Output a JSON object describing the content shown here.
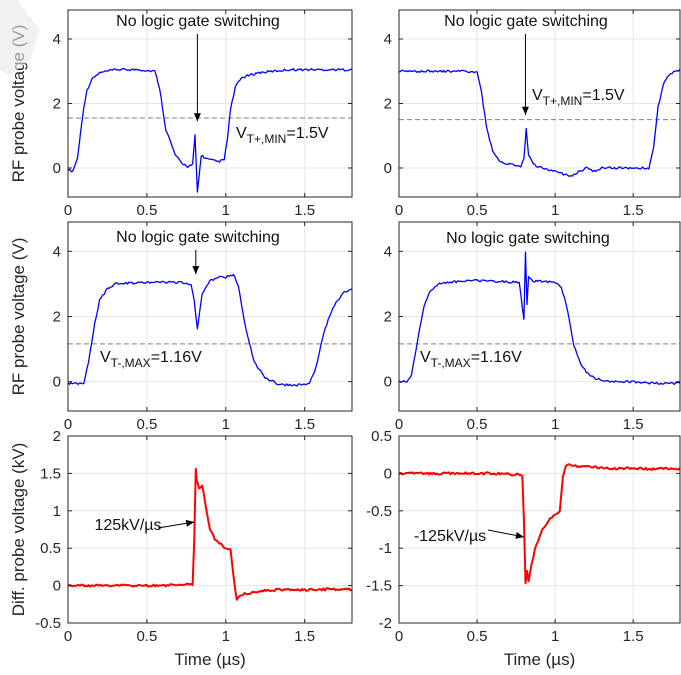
{
  "chart_data": [
    {
      "type": "line",
      "xlim": [
        0,
        1.8
      ],
      "ylim": [
        -0.9,
        4.9
      ],
      "xticks": [
        0,
        0.5,
        1,
        1.5
      ],
      "yticks": [
        0,
        2,
        4
      ],
      "xtick_labels": [
        "0",
        "0.5",
        "1",
        "1.5"
      ],
      "ytick_labels": [
        "0",
        "2",
        "4"
      ],
      "xlabel": "",
      "ylabel": "RF probe voltage (V)",
      "grid": true,
      "series": [
        {
          "color": "#0000ff",
          "x": [
            0,
            0.03,
            0.06,
            0.08,
            0.1,
            0.12,
            0.15,
            0.2,
            0.3,
            0.45,
            0.55,
            0.58,
            0.62,
            0.68,
            0.72,
            0.76,
            0.79,
            0.805,
            0.82,
            0.83,
            0.845,
            0.87,
            0.9,
            0.95,
            0.99,
            1.01,
            1.03,
            1.06,
            1.1,
            1.2,
            1.4,
            1.6,
            1.8
          ],
          "y": [
            -0.05,
            -0.1,
            0.3,
            1.1,
            1.9,
            2.4,
            2.75,
            2.95,
            3.05,
            3.05,
            3.0,
            2.5,
            1.2,
            0.4,
            0.15,
            0.05,
            0.1,
            1.0,
            -0.75,
            -0.3,
            0.4,
            0.3,
            0.25,
            0.2,
            0.25,
            0.9,
            1.8,
            2.5,
            2.8,
            2.95,
            3.05,
            3.05,
            3.05
          ]
        }
      ],
      "reference_line": {
        "y": 1.55,
        "style": "dashed"
      },
      "annotations": [
        {
          "text": "No logic gate switching",
          "arrow_to": [
            0.82,
            1.45
          ]
        },
        {
          "main": "V",
          "sub": "T+,MIN",
          "after": "=1.5V"
        }
      ]
    },
    {
      "type": "line",
      "xlim": [
        0,
        1.8
      ],
      "ylim": [
        -0.9,
        4.9
      ],
      "xticks": [
        0,
        0.5,
        1,
        1.5
      ],
      "yticks": [
        0,
        2,
        4
      ],
      "xtick_labels": [
        "0",
        "0.5",
        "1",
        "1.5"
      ],
      "ytick_labels": [
        "0",
        "2",
        "4"
      ],
      "xlabel": "",
      "ylabel": "",
      "grid": true,
      "series": [
        {
          "color": "#0000ff",
          "x": [
            0,
            0.2,
            0.4,
            0.5,
            0.53,
            0.56,
            0.6,
            0.65,
            0.72,
            0.78,
            0.8,
            0.815,
            0.83,
            0.86,
            0.95,
            1.1,
            1.2,
            1.25,
            1.3,
            1.4,
            1.5,
            1.55,
            1.6,
            1.63,
            1.66,
            1.7,
            1.75,
            1.8
          ],
          "y": [
            3.0,
            3.0,
            3.0,
            2.95,
            2.3,
            1.3,
            0.5,
            0.2,
            0.1,
            0.05,
            0.3,
            1.2,
            0.4,
            0.1,
            -0.05,
            -0.25,
            0.0,
            -0.1,
            0.0,
            0.0,
            0.0,
            0.0,
            0.0,
            0.6,
            1.9,
            2.7,
            2.95,
            3.05
          ]
        }
      ],
      "reference_line": {
        "y": 1.5,
        "style": "dashed"
      },
      "annotations": [
        {
          "text": "No logic gate switching",
          "arrow_to": [
            0.81,
            1.65
          ]
        },
        {
          "main": "V",
          "sub": "T+,MIN",
          "after": "=1.5V"
        }
      ]
    },
    {
      "type": "line",
      "xlim": [
        0,
        1.8
      ],
      "ylim": [
        -0.9,
        4.9
      ],
      "xticks": [
        0,
        0.5,
        1,
        1.5
      ],
      "yticks": [
        0,
        2,
        4
      ],
      "xtick_labels": [
        "0",
        "0.5",
        "1",
        "1.5"
      ],
      "ytick_labels": [
        "0",
        "2",
        "4"
      ],
      "xlabel": "",
      "ylabel": "RF probe voltage (V)",
      "grid": true,
      "series": [
        {
          "color": "#0000ff",
          "x": [
            0,
            0.1,
            0.13,
            0.17,
            0.2,
            0.25,
            0.3,
            0.5,
            0.7,
            0.78,
            0.8,
            0.82,
            0.85,
            0.9,
            0.95,
            1.0,
            1.05,
            1.08,
            1.12,
            1.18,
            1.25,
            1.35,
            1.45,
            1.5,
            1.53,
            1.57,
            1.62,
            1.68,
            1.75,
            1.8
          ],
          "y": [
            -0.05,
            -0.05,
            0.6,
            1.8,
            2.5,
            2.85,
            3.0,
            3.05,
            3.05,
            3.0,
            2.5,
            1.6,
            2.7,
            3.1,
            3.2,
            3.2,
            3.3,
            2.9,
            1.8,
            0.6,
            0.1,
            -0.1,
            -0.1,
            -0.1,
            -0.05,
            0.4,
            1.5,
            2.3,
            2.75,
            2.85
          ]
        }
      ],
      "reference_line": {
        "y": 1.16,
        "style": "dashed"
      },
      "annotations": [
        {
          "text": "No logic gate switching",
          "arrow_to": [
            0.81,
            3.3
          ]
        },
        {
          "main": "V",
          "sub": "T-,MAX",
          "after": "=1.16V"
        }
      ]
    },
    {
      "type": "line",
      "xlim": [
        0,
        1.8
      ],
      "ylim": [
        -0.9,
        4.9
      ],
      "xticks": [
        0,
        0.5,
        1,
        1.5
      ],
      "yticks": [
        0,
        2,
        4
      ],
      "xtick_labels": [
        "0",
        "0.5",
        "1",
        "1.5"
      ],
      "ytick_labels": [
        "0",
        "2",
        "4"
      ],
      "xlabel": "",
      "ylabel": "",
      "grid": true,
      "series": [
        {
          "color": "#0000ff",
          "x": [
            0,
            0.05,
            0.08,
            0.12,
            0.16,
            0.2,
            0.25,
            0.3,
            0.5,
            0.77,
            0.8,
            0.81,
            0.82,
            0.83,
            0.85,
            1.0,
            1.04,
            1.08,
            1.12,
            1.18,
            1.25,
            1.35,
            1.5,
            1.65,
            1.8
          ],
          "y": [
            0.0,
            0.0,
            0.2,
            1.3,
            2.3,
            2.8,
            3.0,
            3.05,
            3.1,
            3.05,
            1.9,
            4.0,
            2.4,
            3.2,
            3.1,
            3.05,
            2.9,
            2.2,
            1.1,
            0.4,
            0.1,
            0.0,
            0.0,
            -0.05,
            -0.05
          ]
        }
      ],
      "reference_line": {
        "y": 1.16,
        "style": "dashed"
      },
      "annotations": [
        {
          "text": "No logic gate switching"
        },
        {
          "main": "V",
          "sub": "T-,MAX",
          "after": "=1.16V"
        }
      ]
    },
    {
      "type": "line",
      "xlim": [
        0,
        1.8
      ],
      "ylim": [
        -0.5,
        2
      ],
      "xticks": [
        0,
        0.5,
        1,
        1.5
      ],
      "yticks": [
        -0.5,
        0,
        0.5,
        1,
        1.5,
        2
      ],
      "xtick_labels": [
        "0",
        "0.5",
        "1",
        "1.5"
      ],
      "ytick_labels": [
        "-0.5",
        "0",
        "0.5",
        "1",
        "1.5",
        "2"
      ],
      "xlabel": "Time (µs)",
      "ylabel": "Diff. probe voltage (kV)",
      "grid": true,
      "series": [
        {
          "color": "#ff0000",
          "x": [
            0,
            0.3,
            0.6,
            0.79,
            0.8,
            0.81,
            0.815,
            0.83,
            0.85,
            0.87,
            0.9,
            0.93,
            0.97,
            1.0,
            1.03,
            1.05,
            1.07,
            1.1,
            1.15,
            1.2,
            1.3,
            1.4,
            1.5,
            1.6,
            1.8
          ],
          "y": [
            0.0,
            0.0,
            0.0,
            0.02,
            0.6,
            1.55,
            1.4,
            1.3,
            1.35,
            1.1,
            0.75,
            0.62,
            0.55,
            0.5,
            0.48,
            0.1,
            -0.18,
            -0.12,
            -0.1,
            -0.08,
            -0.06,
            -0.05,
            -0.06,
            -0.05,
            -0.05
          ]
        }
      ],
      "annotations": [
        {
          "text": "125kV/µs",
          "arrow_to": [
            0.8,
            0.85
          ]
        }
      ]
    },
    {
      "type": "line",
      "xlim": [
        0,
        1.8
      ],
      "ylim": [
        -2,
        0.5
      ],
      "xticks": [
        0,
        0.5,
        1,
        1.5
      ],
      "yticks": [
        -2,
        -1.5,
        -1,
        -0.5,
        0,
        0.5
      ],
      "xtick_labels": [
        "0",
        "0.5",
        "1",
        "1.5"
      ],
      "ytick_labels": [
        "-2",
        "-1.5",
        "-1",
        "-0.5",
        "0",
        "0.5"
      ],
      "xlabel": "Time (µs)",
      "ylabel": "",
      "grid": true,
      "series": [
        {
          "color": "#ff0000",
          "x": [
            0,
            0.3,
            0.6,
            0.79,
            0.8,
            0.81,
            0.82,
            0.83,
            0.85,
            0.88,
            0.92,
            0.96,
            1.0,
            1.03,
            1.05,
            1.07,
            1.1,
            1.15,
            1.2,
            1.3,
            1.4,
            1.5,
            1.6,
            1.8
          ],
          "y": [
            0.0,
            0.0,
            0.0,
            -0.02,
            -0.6,
            -1.48,
            -1.3,
            -1.45,
            -1.2,
            -0.95,
            -0.75,
            -0.62,
            -0.55,
            -0.5,
            -0.05,
            0.1,
            0.12,
            0.08,
            0.1,
            0.07,
            0.06,
            0.07,
            0.06,
            0.06
          ]
        }
      ],
      "annotations": [
        {
          "text": "-125kV/µs",
          "arrow_to": [
            0.8,
            -0.85
          ]
        }
      ]
    }
  ]
}
